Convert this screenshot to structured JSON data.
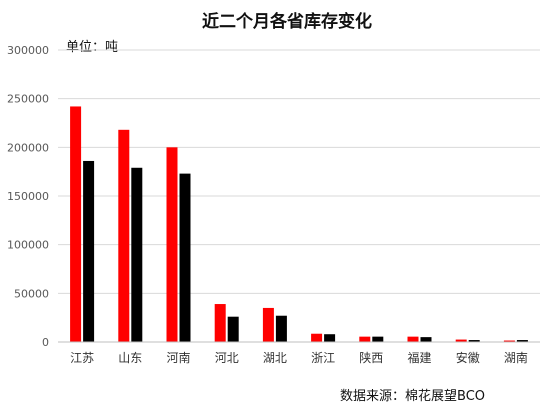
{
  "chart_data": {
    "type": "bar",
    "title": "近二个月各省库存变化",
    "unit_label": "单位：吨",
    "source": "数据来源：棉花展望BCO",
    "categories": [
      "江苏",
      "山东",
      "河南",
      "河北",
      "湖北",
      "浙江",
      "陕西",
      "福建",
      "安徽",
      "湖南"
    ],
    "series": [
      {
        "values": [
          242000,
          218000,
          200000,
          39000,
          35000,
          8500,
          5500,
          5500,
          2500,
          1500
        ],
        "color": "#ff0000"
      },
      {
        "values": [
          186000,
          179000,
          173000,
          26000,
          27000,
          8000,
          5500,
          5000,
          2000,
          2000
        ],
        "color": "#000000"
      }
    ],
    "ylim": [
      0,
      300000
    ],
    "yticks": [
      "0",
      "50000",
      "100000",
      "150000",
      "200000",
      "250000",
      "300000"
    ],
    "grid": true,
    "legend": "none"
  }
}
